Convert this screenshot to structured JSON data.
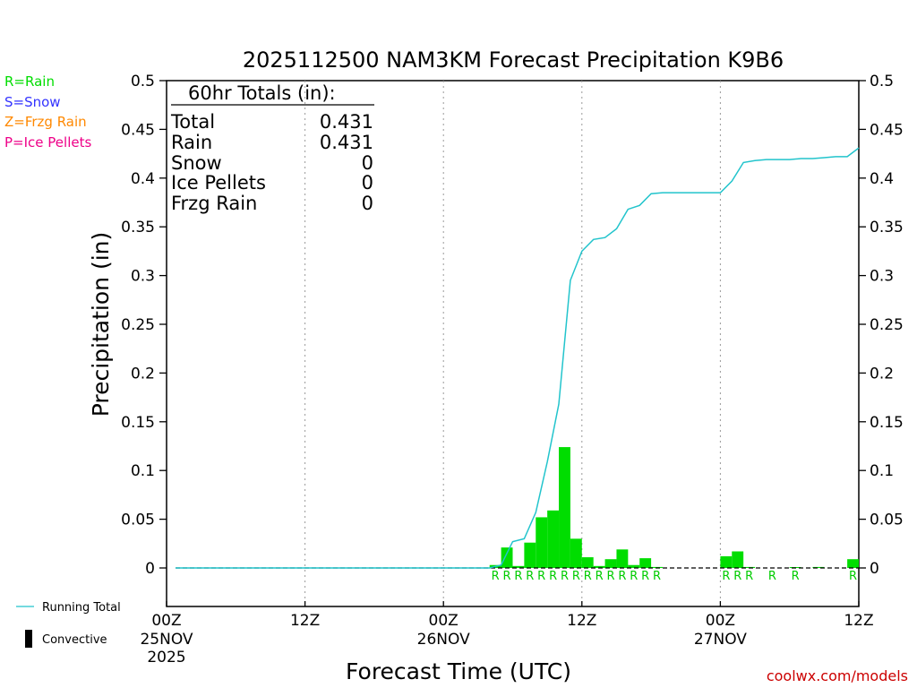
{
  "chart_data": {
    "type": "bar",
    "title": "2025112500 NAM3KM Forecast Precipitation K9B6",
    "xlabel": "Forecast Time (UTC)",
    "ylabel": "Precipitation (in)",
    "ylim": [
      -0.04,
      0.5
    ],
    "xlim_hours": [
      0,
      60
    ],
    "yticks": [
      "0.5",
      "0.45",
      "0.4",
      "0.35",
      "0.3",
      "0.25",
      "0.2",
      "0.15",
      "0.1",
      "0.05",
      "0"
    ],
    "ytick_values": [
      0.5,
      0.45,
      0.4,
      0.35,
      0.3,
      0.25,
      0.2,
      0.15,
      0.1,
      0.05,
      0
    ],
    "xticks": [
      {
        "hour": 0,
        "label": "00Z",
        "line2": "25NOV",
        "line3": "2025"
      },
      {
        "hour": 12,
        "label": "12Z",
        "line2": "",
        "line3": ""
      },
      {
        "hour": 24,
        "label": "00Z",
        "line2": "26NOV",
        "line3": ""
      },
      {
        "hour": 36,
        "label": "12Z",
        "line2": "",
        "line3": ""
      },
      {
        "hour": 48,
        "label": "00Z",
        "line2": "27NOV",
        "line3": ""
      },
      {
        "hour": 60,
        "label": "12Z",
        "line2": "",
        "line3": ""
      }
    ],
    "hourly_precip": {
      "hours": [
        29,
        30,
        31,
        32,
        33,
        34,
        35,
        36,
        37,
        38,
        39,
        40,
        41,
        42,
        43,
        49,
        50,
        51,
        55,
        57,
        60
      ],
      "values": [
        0.003,
        0.021,
        0.002,
        0.026,
        0.052,
        0.059,
        0.124,
        0.03,
        0.011,
        0.002,
        0.009,
        0.019,
        0.003,
        0.01,
        0.001,
        0.012,
        0.017,
        0.001,
        0.0005,
        0.001,
        0.009
      ],
      "color": "#00dd00"
    },
    "running_total": {
      "name": "Running Total",
      "color": "#22c4cc",
      "hours": [
        0,
        28,
        29,
        30,
        31,
        32,
        33,
        34,
        35,
        36,
        37,
        38,
        39,
        40,
        41,
        42,
        43,
        44,
        45,
        46,
        47,
        48,
        49,
        50,
        51,
        52,
        53,
        54,
        55,
        56,
        57,
        58,
        59,
        60
      ],
      "values": [
        0,
        0,
        0.003,
        0.027,
        0.03,
        0.057,
        0.109,
        0.168,
        0.295,
        0.325,
        0.337,
        0.339,
        0.348,
        0.368,
        0.372,
        0.384,
        0.385,
        0.385,
        0.385,
        0.385,
        0.385,
        0.385,
        0.397,
        0.416,
        0.418,
        0.419,
        0.419,
        0.419,
        0.42,
        0.42,
        0.421,
        0.422,
        0.422,
        0.431
      ]
    },
    "ptype_markers": {
      "hours": [
        29,
        30,
        31,
        32,
        33,
        34,
        35,
        36,
        37,
        38,
        39,
        40,
        41,
        42,
        43,
        49,
        50,
        51,
        53,
        55,
        60
      ],
      "label": "R"
    }
  },
  "legend": {
    "rain": "R=Rain",
    "snow": "S=Snow",
    "frzg": "Z=Frzg Rain",
    "ice": "P=Ice Pellets",
    "rain_color": "#00dd00",
    "snow_color": "#3333ff",
    "frzg_color": "#ff8800",
    "ice_color": "#ee0088",
    "running_total": "Running Total",
    "convective": "Convective"
  },
  "totals": {
    "header": "60hr Totals (in):",
    "rows": [
      {
        "label": "Total",
        "value": "0.431"
      },
      {
        "label": "Rain",
        "value": "0.431"
      },
      {
        "label": "Snow",
        "value": "0"
      },
      {
        "label": "Ice Pellets",
        "value": "0"
      },
      {
        "label": "Frzg Rain",
        "value": "0"
      }
    ]
  },
  "credit": "coolwx.com/models"
}
